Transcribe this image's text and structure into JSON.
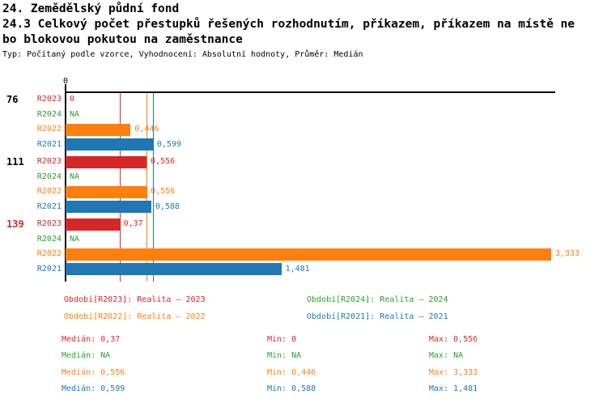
{
  "header": {
    "title_line1": "24. Zemědělský půdní fond",
    "title_line2": "24.3 Celkový počet přestupků řešených rozhodnutím, příkazem, příkazem na místě ne",
    "title_line3": "bo blokovou pokutou na zaměstnance",
    "meta": "Typ: Počítaný podle vzorce, Vyhodnocení: Absolutní hodnoty, Průměr: Medián"
  },
  "colors": {
    "R2023": "#d62728",
    "R2024": "#2ca02c",
    "R2022": "#ff7f0e",
    "R2021": "#1f77b4",
    "axis": "#000000"
  },
  "chart_data": {
    "type": "bar",
    "orientation": "horizontal",
    "title": "24.3 Celkový počet přestupků řešených rozhodnutím, příkazem, příkazem na místě nebo blokovou pokutou na zaměstnance",
    "x_axis": {
      "min": 0,
      "tick_labels": [
        "0"
      ],
      "max_extent": 3.36,
      "grid": false
    },
    "series_order": [
      "R2023",
      "R2024",
      "R2022",
      "R2021"
    ],
    "groups": [
      {
        "label": "76",
        "label_color": "#000000",
        "values": [
          {
            "series": "R2023",
            "value": 0,
            "display": "0"
          },
          {
            "series": "R2024",
            "value": null,
            "display": "NA"
          },
          {
            "series": "R2022",
            "value": 0.446,
            "display": "0,446"
          },
          {
            "series": "R2021",
            "value": 0.599,
            "display": "0,599"
          }
        ]
      },
      {
        "label": "111",
        "label_color": "#000000",
        "values": [
          {
            "series": "R2023",
            "value": 0.556,
            "display": "0,556"
          },
          {
            "series": "R2024",
            "value": null,
            "display": "NA"
          },
          {
            "series": "R2022",
            "value": 0.556,
            "display": "0,556"
          },
          {
            "series": "R2021",
            "value": 0.588,
            "display": "0,588"
          }
        ]
      },
      {
        "label": "139",
        "label_color": "#d62728",
        "values": [
          {
            "series": "R2023",
            "value": 0.37,
            "display": "0,37"
          },
          {
            "series": "R2024",
            "value": null,
            "display": "NA"
          },
          {
            "series": "R2022",
            "value": 3.333,
            "display": "3,333"
          },
          {
            "series": "R2021",
            "value": 1.481,
            "display": "1,481"
          }
        ]
      }
    ],
    "median_lines": [
      {
        "series": "R2023",
        "value": 0.37
      },
      {
        "series": "R2022",
        "value": 0.556
      },
      {
        "series": "R2021",
        "value": 0.599
      }
    ]
  },
  "legend": {
    "items": [
      {
        "series": "R2023",
        "label": "Období[R2023]: Realita – 2023",
        "color": "#d62728",
        "col": 0,
        "row": 0
      },
      {
        "series": "R2024",
        "label": "Období[R2024]: Realita – 2024",
        "color": "#2ca02c",
        "col": 1,
        "row": 0
      },
      {
        "series": "R2022",
        "label": "Období[R2022]: Realita – 2022",
        "color": "#ff7f0e",
        "col": 0,
        "row": 1
      },
      {
        "series": "R2021",
        "label": "Období[R2021]: Realita – 2021",
        "color": "#1f77b4",
        "col": 1,
        "row": 1
      }
    ]
  },
  "stats": {
    "labels": {
      "median": "Medián",
      "min": "Min",
      "max": "Max"
    },
    "rows": [
      {
        "series": "R2023",
        "color": "#d62728",
        "median": "0,37",
        "min": "0",
        "max": "0,556"
      },
      {
        "series": "R2024",
        "color": "#2ca02c",
        "median": "NA",
        "min": "NA",
        "max": "NA"
      },
      {
        "series": "R2022",
        "color": "#ff7f0e",
        "median": "0,556",
        "min": "0,446",
        "max": "3,333"
      },
      {
        "series": "R2021",
        "color": "#1f77b4",
        "median": "0,599",
        "min": "0,588",
        "max": "1,481"
      }
    ]
  }
}
